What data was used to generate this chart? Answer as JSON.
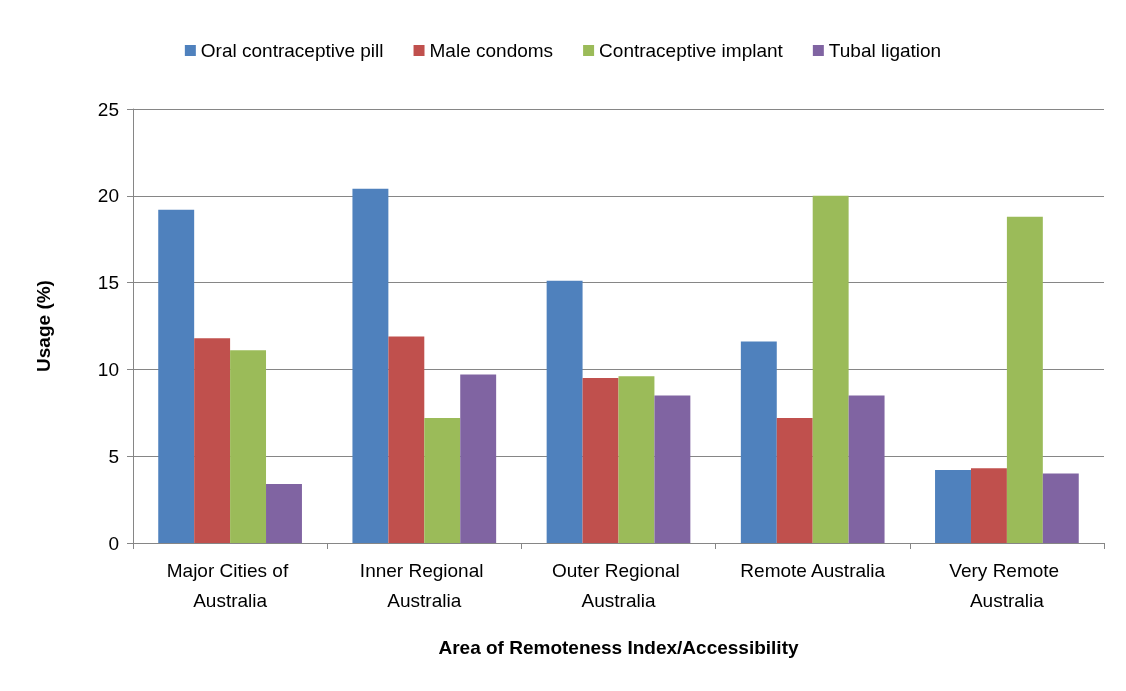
{
  "chart_data": {
    "type": "bar",
    "xlabel": "Area of Remoteness Index/Accessibility",
    "ylabel": "Usage (%)",
    "categories": [
      "Major Cities of Australia",
      "Inner Regional Australia",
      "Outer Regional Australia",
      "Remote Australia",
      "Very Remote Australia"
    ],
    "series": [
      {
        "name": "Oral contraceptive pill",
        "color": "#4f81bd",
        "values": [
          19.2,
          20.4,
          15.1,
          11.6,
          4.2
        ]
      },
      {
        "name": "Male condoms",
        "color": "#c0504d",
        "values": [
          11.8,
          11.9,
          9.5,
          7.2,
          4.3
        ]
      },
      {
        "name": "Contraceptive implant",
        "color": "#9bbb59",
        "values": [
          11.1,
          7.2,
          9.6,
          20.0,
          18.8
        ]
      },
      {
        "name": "Tubal ligation",
        "color": "#8064a2",
        "values": [
          3.4,
          9.7,
          8.5,
          8.5,
          4.0
        ]
      }
    ],
    "ylim": [
      0,
      25
    ],
    "yticks": [
      0,
      5,
      10,
      15,
      20,
      25
    ],
    "grid": "y",
    "legend": "top"
  }
}
